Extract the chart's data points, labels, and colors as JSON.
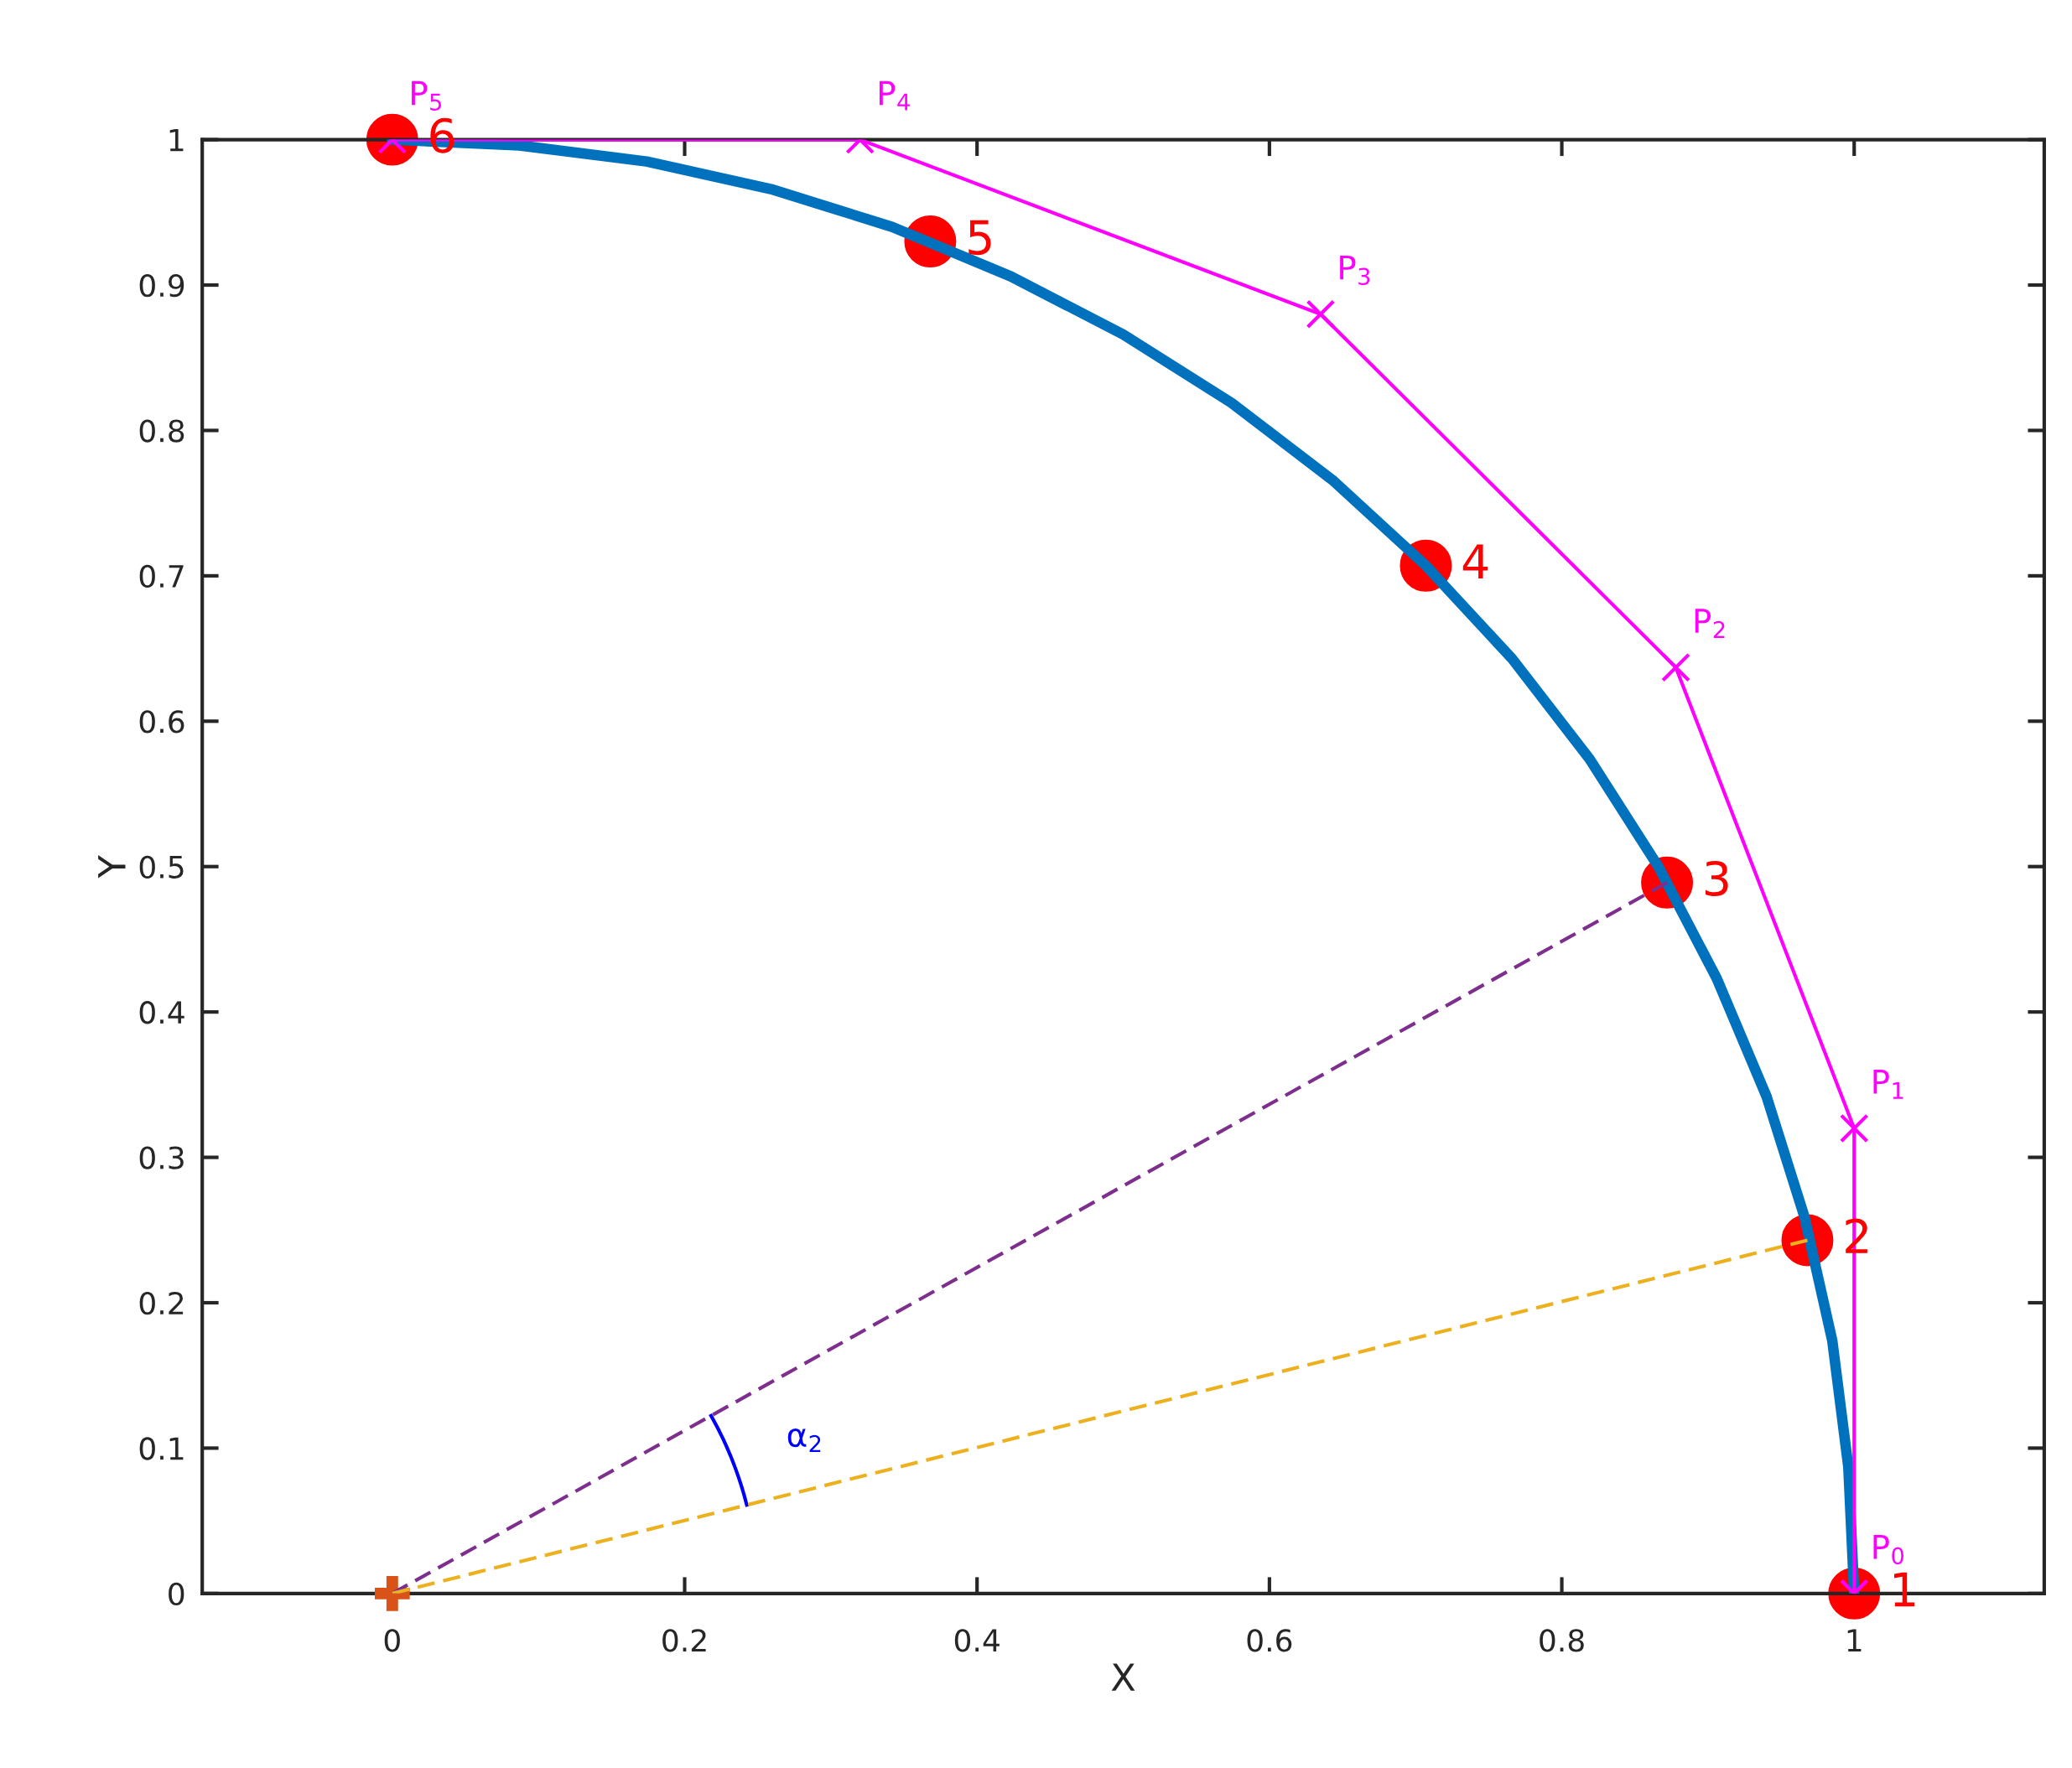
{
  "chart_data": {
    "type": "line",
    "xlabel": "X",
    "ylabel": "Y",
    "xlim": [
      -0.13,
      1.13
    ],
    "ylim": [
      0,
      1
    ],
    "xticks": [
      0,
      0.2,
      0.4,
      0.6,
      0.8,
      1
    ],
    "yticks": [
      0,
      0.1,
      0.2,
      0.3,
      0.4,
      0.5,
      0.6,
      0.7,
      0.8,
      0.9,
      1
    ],
    "grid": false,
    "legend": false,
    "series": [
      {
        "type": "line",
        "color": "#0072bd",
        "marker": "none",
        "line_style": "solid",
        "x": [
          1,
          0.996,
          0.985,
          0.966,
          0.94,
          0.906,
          0.866,
          0.819,
          0.766,
          0.707,
          0.643,
          0.574,
          0.5,
          0.423,
          0.342,
          0.259,
          0.174,
          0.087,
          0
        ],
        "values": [
          0,
          0.087,
          0.174,
          0.259,
          0.342,
          0.423,
          0.5,
          0.574,
          0.643,
          0.707,
          0.766,
          0.819,
          0.866,
          0.906,
          0.94,
          0.966,
          0.985,
          0.996,
          1
        ]
      },
      {
        "type": "line",
        "color": "#7e2f8e",
        "marker": "none",
        "line_style": "dashed",
        "x": [
          0,
          0.872
        ],
        "values": [
          0,
          0.489
        ]
      },
      {
        "type": "line",
        "color": "#edb120",
        "marker": "none",
        "line_style": "dashed",
        "x": [
          0,
          0.968
        ],
        "values": [
          0,
          0.243
        ]
      },
      {
        "type": "scatter",
        "color": "#ff0000",
        "marker": "circle",
        "x": [
          1,
          0.968,
          0.872,
          0.707,
          0.368,
          0
        ],
        "values": [
          0,
          0.243,
          0.489,
          0.707,
          0.93,
          1
        ]
      },
      {
        "type": "line",
        "color": "#ff00ff",
        "marker": "cross",
        "line_style": "solid",
        "x": [
          1,
          1,
          0.878,
          0.635,
          0.32,
          0
        ],
        "values": [
          0,
          0.32,
          0.637,
          0.88,
          1,
          1
        ]
      },
      {
        "type": "scatter",
        "color": "#d95319",
        "x": [
          0
        ],
        "values": [
          0
        ]
      }
    ],
    "annotations": [
      {
        "text": "1",
        "x": 1,
        "y": 0
      },
      {
        "text": "2",
        "x": 0.968,
        "y": 0.243
      },
      {
        "text": "3",
        "x": 0.872,
        "y": 0.489
      },
      {
        "text": "4",
        "x": 0.707,
        "y": 0.707
      },
      {
        "text": "5",
        "x": 0.368,
        "y": 0.93
      },
      {
        "text": "6",
        "x": 0,
        "y": 1
      },
      {
        "text": "P$_{0}$",
        "x": 1,
        "y": 0
      },
      {
        "text": "P$_{1}$",
        "x": 1,
        "y": 0.32
      },
      {
        "text": "P$_{2}$",
        "x": 0.878,
        "y": 0.637
      },
      {
        "text": "P$_{3}$",
        "x": 0.635,
        "y": 0.88
      },
      {
        "text": "P$_{4}$",
        "x": 0.32,
        "y": 1
      },
      {
        "text": "P$_{5}$",
        "x": 0,
        "y": 1
      },
      "α$_{2}$"
    ]
  }
}
